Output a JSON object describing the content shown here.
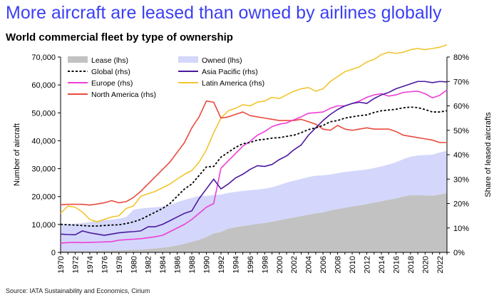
{
  "headline": "More aircraft are leased than owned by airlines globally",
  "source": "Source: IATA Sustainability and Economics, Cirium",
  "colors": {
    "headline": "#3b3ff2",
    "lease": "#c2c2c2",
    "owned": "#d4d7fb",
    "global": "#000000",
    "asia_pacific": "#4b1a9e",
    "europe": "#ee3fd6",
    "latin_america": "#f2c530",
    "north_america": "#ea4a3d"
  },
  "chart_data": {
    "type": "area",
    "title": "World commercial fleet by type of ownership",
    "ylabel_left": "Number of aircraft",
    "ylabel_right": "Share of leased aircrafts",
    "ylim_left": [
      0,
      70000
    ],
    "yticks_left": [
      "0",
      "10,000",
      "20,000",
      "30,000",
      "40,000",
      "50,000",
      "60,000",
      "70,000"
    ],
    "ylim_right": [
      0,
      80
    ],
    "yticks_right": [
      "0%",
      "10%",
      "20%",
      "30%",
      "40%",
      "50%",
      "60%",
      "70%",
      "80%"
    ],
    "xticks": [
      "1970",
      "1972",
      "1974",
      "1976",
      "1978",
      "1980",
      "1982",
      "1984",
      "1986",
      "1988",
      "1990",
      "1992",
      "1994",
      "1996",
      "1998",
      "2000",
      "2002",
      "2004",
      "2006",
      "2008",
      "2010",
      "2012",
      "2014",
      "2016",
      "2018",
      "2020",
      "2022"
    ],
    "x": [
      1970,
      1971,
      1972,
      1973,
      1974,
      1975,
      1976,
      1977,
      1978,
      1979,
      1980,
      1981,
      1982,
      1983,
      1984,
      1985,
      1986,
      1987,
      1988,
      1989,
      1990,
      1991,
      1992,
      1993,
      1994,
      1995,
      1996,
      1997,
      1998,
      1999,
      2000,
      2001,
      2002,
      2003,
      2004,
      2005,
      2006,
      2007,
      2008,
      2009,
      2010,
      2011,
      2012,
      2013,
      2014,
      2015,
      2016,
      2017,
      2018,
      2019,
      2020,
      2021,
      2022,
      2023
    ],
    "legend_position": "top",
    "stacked_areas": [
      {
        "name": "Lease (lhs)",
        "axis": "left",
        "values": [
          500,
          500,
          500,
          500,
          500,
          500,
          600,
          600,
          700,
          800,
          900,
          1000,
          1200,
          1400,
          1700,
          2000,
          2500,
          3100,
          3800,
          4500,
          5500,
          6800,
          7300,
          8500,
          9000,
          9500,
          9800,
          10200,
          10500,
          11000,
          11500,
          12000,
          12500,
          13000,
          13500,
          14000,
          14300,
          15000,
          15500,
          16000,
          16400,
          16800,
          17300,
          17800,
          18300,
          18800,
          19300,
          20000,
          20500,
          20500,
          20400,
          20300,
          20700,
          21200
        ]
      },
      {
        "name": "Owned (lhs)",
        "axis": "left",
        "values": [
          9500,
          9600,
          9800,
          10000,
          10400,
          10800,
          11000,
          11100,
          11400,
          11800,
          14400,
          14700,
          14800,
          14800,
          14700,
          15000,
          15500,
          15700,
          15700,
          15700,
          14700,
          13800,
          13400,
          12800,
          12700,
          12500,
          12500,
          12300,
          12300,
          12300,
          12600,
          13000,
          13200,
          13300,
          13500,
          13500,
          13300,
          12900,
          12900,
          12800,
          12700,
          12600,
          12400,
          12400,
          12500,
          12700,
          13000,
          13400,
          13800,
          14200,
          14500,
          14700,
          15100,
          15200
        ]
      }
    ],
    "series": [
      {
        "name": "Global (rhs)",
        "axis": "right",
        "style": "dashed",
        "values": [
          11.5,
          11.3,
          11.2,
          11,
          10.8,
          10.8,
          11,
          11.2,
          11.3,
          11.8,
          12.5,
          13.5,
          15,
          16.5,
          18,
          20,
          23,
          26,
          28,
          31.5,
          35,
          35.2,
          39,
          41,
          43,
          44.5,
          45,
          46,
          46.3,
          46.8,
          47,
          47.5,
          48,
          49,
          50.3,
          51,
          52,
          53.5,
          54,
          55,
          55.5,
          56,
          56.3,
          57.3,
          58,
          58.3,
          58.6,
          59.2,
          59.5,
          59.3,
          58.5,
          57.5,
          57.5,
          58
        ]
      },
      {
        "name": "Asia Pacific (rhs)",
        "axis": "right",
        "values": [
          7.5,
          7.3,
          7.2,
          8.8,
          8,
          7.5,
          7,
          7.5,
          8,
          8.3,
          8.5,
          8.8,
          10.5,
          10.5,
          11.5,
          13,
          14.5,
          16,
          17,
          22,
          26,
          30,
          26,
          28,
          30.5,
          32,
          34,
          35.5,
          35.2,
          36,
          38,
          39.5,
          42,
          44,
          48,
          51,
          54,
          56.5,
          58.5,
          60,
          61,
          61.5,
          61,
          63,
          64.5,
          65.5,
          67,
          68,
          69,
          70,
          70,
          69.5,
          70,
          69.8
        ]
      },
      {
        "name": "Europe (rhs)",
        "axis": "right",
        "values": [
          3.8,
          4,
          4.1,
          4,
          4.1,
          4.2,
          4.3,
          4.4,
          5,
          5.2,
          5.4,
          5.6,
          6,
          6.4,
          7,
          8.5,
          10,
          11.5,
          13.5,
          16,
          18.5,
          20,
          34.5,
          37.5,
          40.5,
          43.5,
          45.5,
          48,
          49.5,
          51.5,
          52.5,
          53,
          54.3,
          55.5,
          57,
          57.2,
          57.5,
          59,
          60,
          60,
          61,
          62,
          63.5,
          64.5,
          65,
          64,
          64.5,
          65.5,
          65.8,
          66,
          65,
          63.3,
          64.3,
          66.5
        ]
      },
      {
        "name": "Latin America (rhs)",
        "axis": "right",
        "values": [
          16,
          19,
          18.5,
          16.5,
          13.5,
          12.5,
          13.5,
          14.5,
          15,
          18,
          19,
          23,
          24,
          25,
          26.5,
          28,
          30,
          32,
          33.5,
          37,
          42,
          49,
          55,
          58,
          59,
          60.5,
          60,
          61.5,
          62,
          63.5,
          63,
          64.5,
          66,
          67,
          67.5,
          66,
          67,
          70,
          72,
          74,
          75,
          76,
          78,
          79,
          81,
          82,
          81.5,
          82,
          83,
          83.5,
          83,
          83.5,
          84,
          85
        ]
      },
      {
        "name": "North America (rhs)",
        "axis": "right",
        "values": [
          19.5,
          19.7,
          19.7,
          19.7,
          19.4,
          19.8,
          20.3,
          21.2,
          20.3,
          20.8,
          22.5,
          25,
          28,
          31,
          34,
          37,
          41,
          45,
          51,
          55.5,
          62,
          61.5,
          55,
          55.5,
          56.5,
          57.5,
          56,
          55.5,
          55,
          54.5,
          54,
          54,
          54,
          54.5,
          53.5,
          52.5,
          50.5,
          50,
          52,
          50.5,
          50,
          50.5,
          51,
          50.5,
          50.5,
          50.5,
          49.5,
          48,
          47.5,
          47,
          46.5,
          46,
          45,
          45
        ]
      }
    ]
  }
}
